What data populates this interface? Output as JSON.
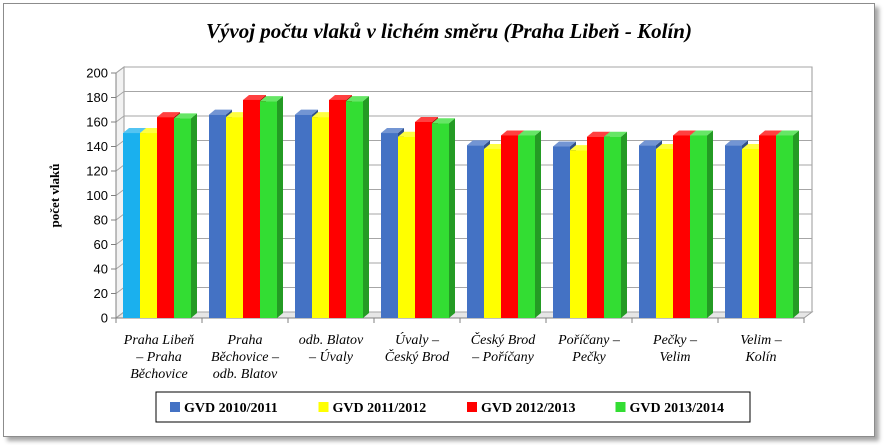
{
  "chart_data": {
    "type": "bar",
    "title": "Vývoj počtu vlaků v lichém směru (Praha Libeň - Kolín)",
    "xlabel": "",
    "ylabel": "počet vlaků",
    "ylim": [
      0,
      200
    ],
    "yticks": [
      0,
      20,
      40,
      60,
      80,
      100,
      120,
      140,
      160,
      180,
      200
    ],
    "grid": true,
    "legend_position": "bottom",
    "categories": [
      [
        "Praha Libeň",
        "– Praha",
        "Běchovice"
      ],
      [
        "Praha",
        "Běchovice –",
        "odb. Blatov"
      ],
      [
        "odb. Blatov",
        "– Úvaly"
      ],
      [
        "Úvaly –",
        "Český Brod"
      ],
      [
        "Český Brod",
        "– Poříčany"
      ],
      [
        "Poříčany –",
        "Pečky"
      ],
      [
        "Pečky –",
        "Velim"
      ],
      [
        "Velim –",
        "Kolín"
      ]
    ],
    "series": [
      {
        "name": "GVD 2010/2011",
        "color": "#4472c4",
        "values": [
          151,
          166,
          166,
          151,
          141,
          140,
          141,
          141
        ]
      },
      {
        "name": "GVD 2011/2012",
        "color": "#ffff00",
        "values": [
          151,
          164,
          164,
          148,
          138,
          137,
          138,
          138
        ]
      },
      {
        "name": "GVD 2012/2013",
        "color": "#ff0000",
        "values": [
          164,
          178,
          178,
          160,
          149,
          148,
          149,
          149
        ]
      },
      {
        "name": "GVD 2013/2014",
        "color": "#33dd33",
        "values": [
          163,
          177,
          177,
          159,
          149,
          148,
          149,
          149
        ]
      }
    ],
    "highlight": {
      "category_index": 0,
      "series_index": 0,
      "color": "#1ab0ee"
    }
  }
}
